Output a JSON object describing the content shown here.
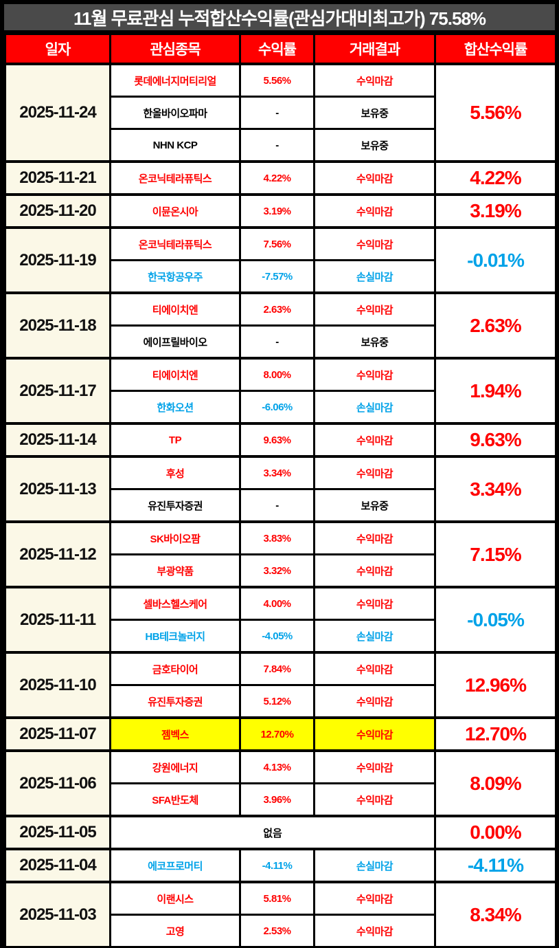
{
  "header": {
    "title": "11월 무료관심 누적합산수익률(관심가대비최고가) 75.58%",
    "cumulative_total": "75.58%"
  },
  "colors": {
    "profit_red": "#ff0000",
    "loss_blue": "#00a2e8",
    "hold_black": "#000000",
    "highlight_yellow": "#ffff00",
    "date_bg_cream": "#fbf8e7",
    "header_bg_red": "#ff0000",
    "titlebar_gray": "#4a4a4a"
  },
  "chart_data": {
    "type": "table",
    "title": "11월 무료관심 누적합산수익률(관심가대비최고가) 75.58%",
    "cumulative_total": "75.58%",
    "columns": [
      "일자",
      "관심종목",
      "수익률",
      "거래결과",
      "합산수익률"
    ],
    "groups": [
      {
        "date": "2025-11-24",
        "total": "5.56%",
        "total_tone": "profit",
        "stocks": [
          {
            "name": "롯데에너지머티리얼",
            "return": "5.56%",
            "result": "수익마감",
            "tone": "profit"
          },
          {
            "name": "한올바이오파마",
            "return": "-",
            "result": "보유중",
            "tone": "hold"
          },
          {
            "name": "NHN KCP",
            "return": "-",
            "result": "보유중",
            "tone": "hold"
          }
        ]
      },
      {
        "date": "2025-11-21",
        "total": "4.22%",
        "total_tone": "profit",
        "stocks": [
          {
            "name": "온코닉테라퓨틱스",
            "return": "4.22%",
            "result": "수익마감",
            "tone": "profit"
          }
        ]
      },
      {
        "date": "2025-11-20",
        "total": "3.19%",
        "total_tone": "profit",
        "stocks": [
          {
            "name": "이뮨온시아",
            "return": "3.19%",
            "result": "수익마감",
            "tone": "profit"
          }
        ]
      },
      {
        "date": "2025-11-19",
        "total": "-0.01%",
        "total_tone": "loss",
        "stocks": [
          {
            "name": "온코닉테라퓨틱스",
            "return": "7.56%",
            "result": "수익마감",
            "tone": "profit"
          },
          {
            "name": "한국항공우주",
            "return": "-7.57%",
            "result": "손실마감",
            "tone": "loss"
          }
        ]
      },
      {
        "date": "2025-11-18",
        "total": "2.63%",
        "total_tone": "profit",
        "stocks": [
          {
            "name": "티에이치엔",
            "return": "2.63%",
            "result": "수익마감",
            "tone": "profit"
          },
          {
            "name": "에이프릴바이오",
            "return": "-",
            "result": "보유중",
            "tone": "hold"
          }
        ]
      },
      {
        "date": "2025-11-17",
        "total": "1.94%",
        "total_tone": "profit",
        "stocks": [
          {
            "name": "티에이치엔",
            "return": "8.00%",
            "result": "수익마감",
            "tone": "profit"
          },
          {
            "name": "한화오션",
            "return": "-6.06%",
            "result": "손실마감",
            "tone": "loss"
          }
        ]
      },
      {
        "date": "2025-11-14",
        "total": "9.63%",
        "total_tone": "profit",
        "stocks": [
          {
            "name": "TP",
            "return": "9.63%",
            "result": "수익마감",
            "tone": "profit"
          }
        ]
      },
      {
        "date": "2025-11-13",
        "total": "3.34%",
        "total_tone": "profit",
        "stocks": [
          {
            "name": "후성",
            "return": "3.34%",
            "result": "수익마감",
            "tone": "profit"
          },
          {
            "name": "유진투자증권",
            "return": "-",
            "result": "보유중",
            "tone": "hold"
          }
        ]
      },
      {
        "date": "2025-11-12",
        "total": "7.15%",
        "total_tone": "profit",
        "stocks": [
          {
            "name": "SK바이오팜",
            "return": "3.83%",
            "result": "수익마감",
            "tone": "profit"
          },
          {
            "name": "부광약품",
            "return": "3.32%",
            "result": "수익마감",
            "tone": "profit"
          }
        ]
      },
      {
        "date": "2025-11-11",
        "total": "-0.05%",
        "total_tone": "loss",
        "stocks": [
          {
            "name": "셀바스헬스케어",
            "return": "4.00%",
            "result": "수익마감",
            "tone": "profit"
          },
          {
            "name": "HB테크놀러지",
            "return": "-4.05%",
            "result": "손실마감",
            "tone": "loss"
          }
        ]
      },
      {
        "date": "2025-11-10",
        "total": "12.96%",
        "total_tone": "profit",
        "stocks": [
          {
            "name": "금호타이어",
            "return": "7.84%",
            "result": "수익마감",
            "tone": "profit"
          },
          {
            "name": "유진투자증권",
            "return": "5.12%",
            "result": "수익마감",
            "tone": "profit"
          }
        ]
      },
      {
        "date": "2025-11-07",
        "total": "12.70%",
        "total_tone": "profit",
        "stocks": [
          {
            "name": "젬벡스",
            "return": "12.70%",
            "result": "수익마감",
            "tone": "profit",
            "highlight": true
          }
        ]
      },
      {
        "date": "2025-11-06",
        "total": "8.09%",
        "total_tone": "profit",
        "stocks": [
          {
            "name": "강원에너지",
            "return": "4.13%",
            "result": "수익마감",
            "tone": "profit"
          },
          {
            "name": "SFA반도체",
            "return": "3.96%",
            "result": "수익마감",
            "tone": "profit"
          }
        ]
      },
      {
        "date": "2025-11-05",
        "total": "0.00%",
        "total_tone": "profit",
        "empty_label": "없음",
        "stocks": []
      },
      {
        "date": "2025-11-04",
        "total": "-4.11%",
        "total_tone": "loss",
        "stocks": [
          {
            "name": "에코프로머티",
            "return": "-4.11%",
            "result": "손실마감",
            "tone": "loss"
          }
        ]
      },
      {
        "date": "2025-11-03",
        "total": "8.34%",
        "total_tone": "profit",
        "stocks": [
          {
            "name": "이랜시스",
            "return": "5.81%",
            "result": "수익마감",
            "tone": "profit"
          },
          {
            "name": "고영",
            "return": "2.53%",
            "result": "수익마감",
            "tone": "profit"
          }
        ]
      }
    ]
  }
}
